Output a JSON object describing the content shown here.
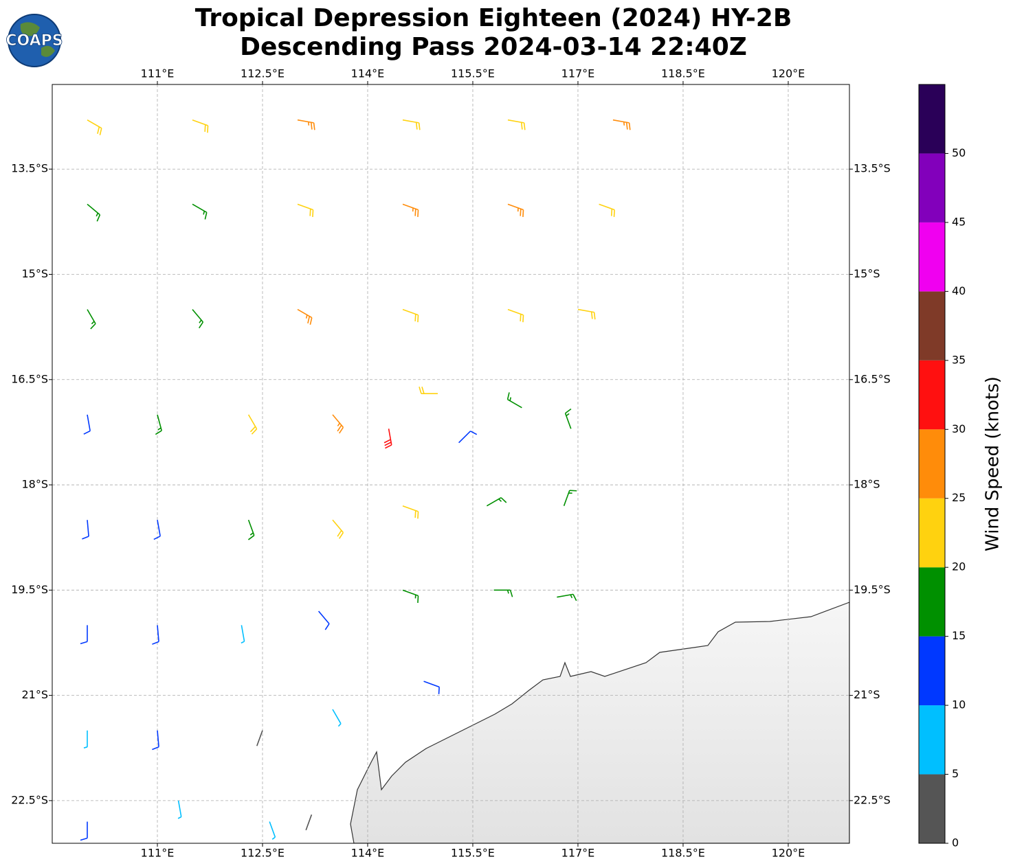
{
  "logo_text": "COAPS",
  "chart_data": {
    "type": "map",
    "title": "Tropical Depression Eighteen (2024) HY-2B",
    "subtitle": "Descending Pass 2024-03-14 22:40Z",
    "xlim": [
      109.5,
      120.873
    ],
    "ylim": [
      -23.108,
      -12.294
    ],
    "xticks": [
      {
        "value": 111,
        "label": "111°E"
      },
      {
        "value": 112.5,
        "label": "112.5°E"
      },
      {
        "value": 114,
        "label": "114°E"
      },
      {
        "value": 115.5,
        "label": "115.5°E"
      },
      {
        "value": 117,
        "label": "117°E"
      },
      {
        "value": 118.5,
        "label": "118.5°E"
      },
      {
        "value": 120,
        "label": "120°E"
      }
    ],
    "yticks": [
      {
        "value": -13.5,
        "label": "13.5°S"
      },
      {
        "value": -15,
        "label": "15°S"
      },
      {
        "value": -16.5,
        "label": "16.5°S"
      },
      {
        "value": -18,
        "label": "18°S"
      },
      {
        "value": -19.5,
        "label": "19.5°S"
      },
      {
        "value": -21,
        "label": "21°S"
      },
      {
        "value": -22.5,
        "label": "22.5°S"
      }
    ],
    "grid": true,
    "barbs": {
      "lon": [
        110.0,
        111.5,
        113,
        114.5,
        116,
        117.5,
        110.0,
        111.5,
        113,
        114.5,
        116,
        117.3,
        110.0,
        111.5,
        113,
        114.5,
        116,
        117.0,
        110.0,
        111.0,
        112.3,
        113.5,
        114.3,
        115.0,
        116.2,
        116.9,
        110.0,
        111.0,
        112.3,
        113.5,
        114.5,
        115.7,
        116.8,
        115.3,
        110.0,
        111.0,
        112.2,
        113.3,
        114.5,
        115.8,
        116.7,
        110.0,
        111.0,
        112.5,
        113.5,
        114.8,
        110.0,
        111.3,
        112.6,
        113.2
      ],
      "lat": [
        -12.8,
        -12.8,
        -12.8,
        -12.8,
        -12.8,
        -12.8,
        -14.0,
        -14.0,
        -14.0,
        -14.0,
        -14.0,
        -14.0,
        -15.5,
        -15.5,
        -15.5,
        -15.5,
        -15.5,
        -15.5,
        -17.0,
        -17.0,
        -17.0,
        -17.0,
        -17.2,
        -16.7,
        -16.9,
        -17.2,
        -18.5,
        -18.5,
        -18.5,
        -18.5,
        -18.3,
        -18.3,
        -18.3,
        -17.4,
        -20.0,
        -20.0,
        -20.0,
        -19.8,
        -19.5,
        -19.5,
        -19.6,
        -21.5,
        -21.5,
        -21.5,
        -21.2,
        -20.8,
        -22.8,
        -22.5,
        -22.8,
        -22.7
      ],
      "speed": [
        22,
        22,
        27,
        22,
        22,
        27,
        17,
        17,
        22,
        27,
        27,
        22,
        17,
        17,
        27,
        22,
        22,
        22,
        12,
        17,
        22,
        27,
        32,
        22,
        17,
        17,
        12,
        12,
        17,
        22,
        22,
        17,
        17,
        12,
        12,
        12,
        7,
        12,
        17,
        17,
        17,
        7,
        12,
        2,
        7,
        12,
        12,
        7,
        7,
        2
      ],
      "dir": [
        120,
        110,
        100,
        100,
        100,
        100,
        130,
        120,
        110,
        110,
        110,
        110,
        150,
        140,
        120,
        110,
        110,
        100,
        170,
        165,
        150,
        140,
        170,
        270,
        300,
        340,
        175,
        170,
        160,
        140,
        110,
        60,
        20,
        45,
        180,
        175,
        170,
        140,
        110,
        90,
        80,
        180,
        175,
        200,
        150,
        110,
        180,
        170,
        160,
        200
      ]
    },
    "colorbar": {
      "label": "Wind Speed (knots)",
      "lim": [
        0,
        55
      ],
      "bounds": [
        0,
        5,
        10,
        15,
        20,
        25,
        30,
        35,
        40,
        45,
        50,
        55
      ],
      "colors": [
        "#555555",
        "#00bfff",
        "#0038ff",
        "#009000",
        "#ffd20f",
        "#ff8c0a",
        "#ff1010",
        "#7f3a28",
        "#f000f0",
        "#8200bb",
        "#2a0058"
      ],
      "ticks": [
        0,
        5,
        10,
        15,
        20,
        25,
        30,
        35,
        40,
        45,
        50
      ]
    }
  }
}
